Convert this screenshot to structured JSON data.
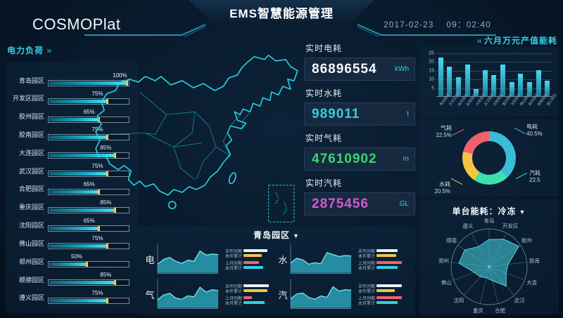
{
  "header": {
    "logo": "COSMOPlat",
    "title": "EMS智慧能源管理",
    "date": "2017-02-23",
    "time": "09：02:40"
  },
  "left_panel": {
    "title": "电力负荷"
  },
  "right_top": {
    "title": "六月万元产值能耗"
  },
  "stats": [
    {
      "label": "实时电耗",
      "value": "86896554",
      "unit": "kWh",
      "color": "#f5f9fd"
    },
    {
      "label": "实时水耗",
      "value": "989011",
      "unit": "t",
      "color": "#35cfe0"
    },
    {
      "label": "实时气耗",
      "value": "47610902",
      "unit": "m",
      "color": "#3bd474"
    },
    {
      "label": "实时汽耗",
      "value": "2875456",
      "unit": "GL",
      "color": "#d45bd0"
    }
  ],
  "bottom_panel": {
    "title": "青岛园区",
    "dropdown": "▼"
  },
  "radar_panel": {
    "title": "单台能耗：冷冻",
    "dropdown": "▼"
  },
  "colors": {
    "accent": "#2fd4e8",
    "bar_yellow": "#f2c84b",
    "map_stroke": "#2ad2e2"
  },
  "chart_data": [
    {
      "id": "power-load",
      "type": "bar",
      "orientation": "horizontal",
      "title": "电力负荷",
      "categories": [
        "青岛园区",
        "开发区园区",
        "胶州园区",
        "胶南园区",
        "大连园区",
        "武汉园区",
        "合肥园区",
        "重庆园区",
        "沈阳园区",
        "佛山园区",
        "郑州园区",
        "顺德园区",
        "遵义园区"
      ],
      "values": [
        100,
        75,
        65,
        75,
        85,
        75,
        65,
        85,
        65,
        75,
        50,
        85,
        75
      ],
      "unit": "%",
      "xlim": [
        0,
        100
      ]
    },
    {
      "id": "monthly-output-energy",
      "type": "bar",
      "title": "六月万元产值能耗",
      "categories": [
        "青岛园区",
        "开发区园区",
        "胶州园区",
        "胶南园区",
        "大连园区",
        "武汉园区",
        "合肥园区",
        "重庆园区",
        "沈阳园区",
        "佛山园区",
        "郑州园区",
        "顺德园区",
        "遵义园区"
      ],
      "values": [
        22,
        17,
        11,
        18,
        4,
        15,
        12,
        18,
        8,
        13,
        8,
        15,
        9
      ],
      "ylim": [
        0,
        25
      ],
      "yticks": [
        5,
        10,
        15,
        20,
        25
      ],
      "grid": true
    },
    {
      "id": "energy-share",
      "type": "pie",
      "slices": [
        {
          "label": "电耗",
          "value": 40.5,
          "value_label": "40.5%",
          "color": "#3bbcd4"
        },
        {
          "label": "汽耗",
          "value": 22.5,
          "value_label": "22.5",
          "color": "#3ae0ae"
        },
        {
          "label": "水耗",
          "value": 20.5,
          "value_label": "20.5%",
          "color": "#f6c344"
        },
        {
          "label": "气耗",
          "value": 22.5,
          "value_label": "22.5%",
          "color": "#f0616d"
        }
      ]
    },
    {
      "id": "unit-energy-radar",
      "type": "radar",
      "title": "单台能耗：冷冻",
      "categories": [
        "青岛",
        "开发区",
        "胶州",
        "胶南",
        "大连",
        "武汉",
        "合肥",
        "重庆",
        "沈阳",
        "佛山",
        "郑州",
        "顺德",
        "遵义"
      ],
      "values": [
        0.72,
        0.82,
        0.95,
        0.5,
        0.48,
        0.68,
        0.38,
        0.3,
        0.35,
        0.42,
        0.8,
        0.78,
        0.6
      ],
      "max": 1
    },
    {
      "id": "park-trends",
      "type": "area",
      "title": "青岛园区",
      "legend": [
        "去年同期",
        "本年累计",
        "上月同期",
        "本月累计"
      ],
      "legend_colors": [
        "#e8f1f8",
        "#f6c344",
        "#f0616d",
        "#35cfe0"
      ],
      "charts": [
        {
          "label": "电",
          "points": [
            0.3,
            0.5,
            0.58,
            0.42,
            0.33,
            0.47,
            0.42,
            0.85,
            0.68,
            0.72,
            0.7
          ],
          "legend_widths": [
            34,
            26,
            22,
            28
          ]
        },
        {
          "label": "水",
          "points": [
            0.35,
            0.55,
            0.48,
            0.3,
            0.36,
            0.32,
            0.78,
            0.7,
            0.62,
            0.66,
            0.64
          ],
          "legend_widths": [
            30,
            28,
            36,
            30
          ]
        },
        {
          "label": "气",
          "points": [
            0.28,
            0.48,
            0.55,
            0.35,
            0.3,
            0.45,
            0.4,
            0.8,
            0.6,
            0.7,
            0.66
          ],
          "legend_widths": [
            36,
            34,
            12,
            30
          ]
        },
        {
          "label": "汽",
          "points": [
            0.32,
            0.52,
            0.56,
            0.38,
            0.3,
            0.44,
            0.38,
            0.82,
            0.64,
            0.7,
            0.68
          ],
          "legend_widths": [
            36,
            26,
            36,
            30
          ]
        }
      ]
    }
  ]
}
